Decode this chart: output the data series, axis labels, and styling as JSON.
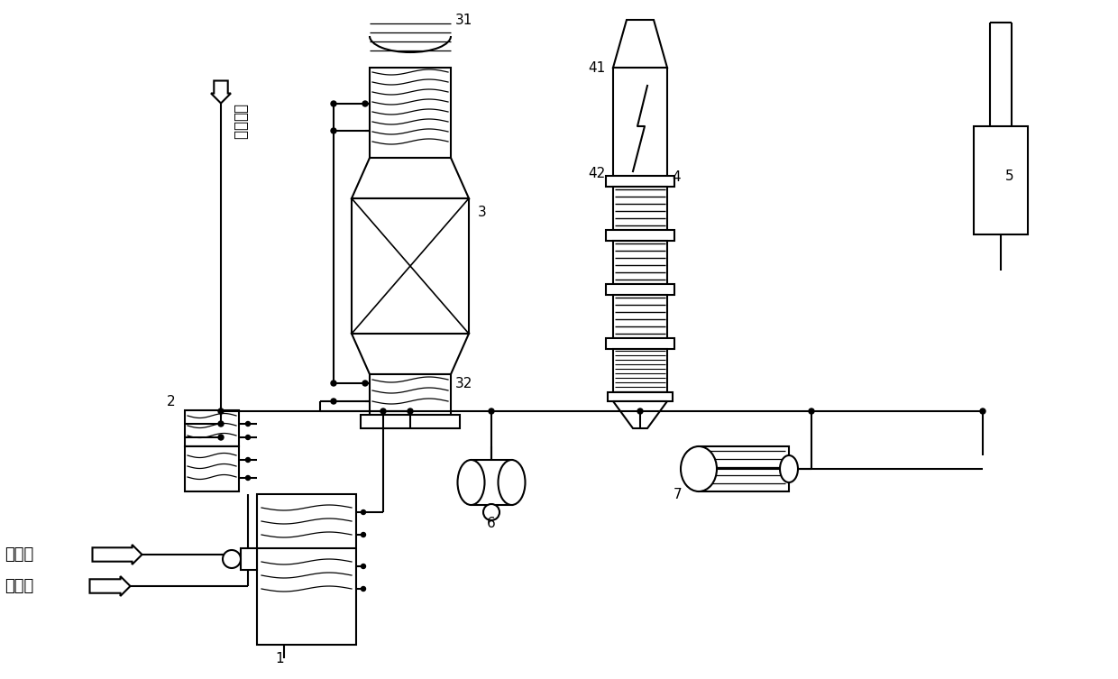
{
  "bg_color": "#ffffff",
  "line_color": "#000000",
  "lw": 1.5,
  "chinese_labels": {
    "fuel_gas": "燃料气",
    "acid_gas": "酸性气",
    "combustion_air": "助燃空气"
  }
}
